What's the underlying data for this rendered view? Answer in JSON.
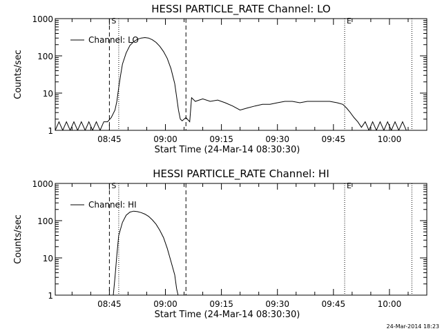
{
  "chart_data": [
    {
      "type": "line",
      "title": "HESSI PARTICLE_RATE Channel: LO",
      "xlabel": "Start Time (24-Mar-14 08:30:30)",
      "ylabel": "Counts/sec",
      "yscale": "log",
      "ylim": [
        1,
        1000
      ],
      "xlim": [
        "08:30:30",
        "10:10:00"
      ],
      "xticks": [
        "08:45",
        "09:00",
        "09:15",
        "09:30",
        "09:45",
        "10:00"
      ],
      "yticks": [
        "1",
        "10",
        "100",
        "1000"
      ],
      "legend": {
        "placement": "top-left"
      },
      "series": [
        {
          "name": "Channel: LO",
          "points": [
            [
              "08:30:30",
              1
            ],
            [
              "08:31:30",
              1.7
            ],
            [
              "08:32:30",
              1
            ],
            [
              "08:33:30",
              1.7
            ],
            [
              "08:34:30",
              1
            ],
            [
              "08:35:30",
              1.7
            ],
            [
              "08:36:30",
              1
            ],
            [
              "08:37:30",
              1.7
            ],
            [
              "08:38:30",
              1
            ],
            [
              "08:39:30",
              1.7
            ],
            [
              "08:40:30",
              1
            ],
            [
              "08:41:30",
              1.7
            ],
            [
              "08:42:30",
              1
            ],
            [
              "08:43:30",
              1.7
            ],
            [
              "08:44:30",
              1.7
            ],
            [
              "08:45:30",
              2.2
            ],
            [
              "08:46:30",
              3.5
            ],
            [
              "08:47:00",
              6
            ],
            [
              "08:47:30",
              14
            ],
            [
              "08:48:00",
              30
            ],
            [
              "08:48:30",
              60
            ],
            [
              "08:49:30",
              120
            ],
            [
              "08:50:30",
              190
            ],
            [
              "08:51:30",
              240
            ],
            [
              "08:52:30",
              280
            ],
            [
              "08:53:30",
              300
            ],
            [
              "08:54:30",
              310
            ],
            [
              "08:55:30",
              300
            ],
            [
              "08:56:30",
              270
            ],
            [
              "08:57:30",
              230
            ],
            [
              "08:58:30",
              180
            ],
            [
              "08:59:30",
              130
            ],
            [
              "09:00:30",
              85
            ],
            [
              "09:01:30",
              45
            ],
            [
              "09:02:30",
              18
            ],
            [
              "09:03:00",
              8
            ],
            [
              "09:03:30",
              3.5
            ],
            [
              "09:04:00",
              2
            ],
            [
              "09:04:30",
              1.8
            ],
            [
              "09:05:30",
              2.2
            ],
            [
              "09:06:30",
              1.7
            ],
            [
              "09:07:00",
              7.5
            ],
            [
              "09:08:00",
              6
            ],
            [
              "09:10:00",
              7
            ],
            [
              "09:12:00",
              6
            ],
            [
              "09:14:00",
              6.5
            ],
            [
              "09:16:00",
              5.5
            ],
            [
              "09:18:00",
              4.5
            ],
            [
              "09:20:00",
              3.5
            ],
            [
              "09:22:00",
              4
            ],
            [
              "09:24:00",
              4.5
            ],
            [
              "09:26:00",
              5
            ],
            [
              "09:28:00",
              5
            ],
            [
              "09:30:00",
              5.5
            ],
            [
              "09:32:00",
              6
            ],
            [
              "09:34:00",
              6
            ],
            [
              "09:36:00",
              5.5
            ],
            [
              "09:38:00",
              6
            ],
            [
              "09:40:00",
              6
            ],
            [
              "09:42:00",
              6
            ],
            [
              "09:44:00",
              6
            ],
            [
              "09:46:00",
              5.5
            ],
            [
              "09:47:30",
              5
            ],
            [
              "09:48:30",
              4
            ],
            [
              "09:49:30",
              3
            ],
            [
              "09:50:30",
              2.2
            ],
            [
              "09:51:30",
              1.7
            ],
            [
              "09:52:30",
              1.2
            ],
            [
              "09:53:30",
              1.7
            ],
            [
              "09:54:30",
              1
            ],
            [
              "09:55:30",
              1.7
            ],
            [
              "09:56:30",
              1
            ],
            [
              "09:57:30",
              1.7
            ],
            [
              "09:58:30",
              1
            ],
            [
              "09:59:30",
              1.7
            ],
            [
              "10:00:30",
              1
            ],
            [
              "10:01:30",
              1.7
            ],
            [
              "10:02:30",
              1
            ],
            [
              "10:03:30",
              1.7
            ],
            [
              "10:04:30",
              1
            ]
          ]
        }
      ],
      "markers": [
        {
          "label": "S",
          "time": "08:45:00",
          "style": "dashed"
        },
        {
          "label": "",
          "time": "08:47:30",
          "style": "dotted"
        },
        {
          "label": "",
          "time": "09:05:30",
          "style": "dashed"
        },
        {
          "label": "E",
          "time": "09:48:00",
          "style": "dotted"
        },
        {
          "label": "",
          "time": "10:06:00",
          "style": "dotted"
        }
      ]
    },
    {
      "type": "line",
      "title": "HESSI PARTICLE_RATE Channel: HI",
      "xlabel": "Start Time (24-Mar-14 08:30:30)",
      "ylabel": "Counts/sec",
      "yscale": "log",
      "ylim": [
        1,
        1000
      ],
      "xlim": [
        "08:30:30",
        "10:10:00"
      ],
      "xticks": [
        "08:45",
        "09:00",
        "09:15",
        "09:30",
        "09:45",
        "10:00"
      ],
      "yticks": [
        "1",
        "10",
        "100",
        "1000"
      ],
      "legend": {
        "placement": "top-left"
      },
      "series": [
        {
          "name": "Channel: HI",
          "points": [
            [
              "08:46:00",
              0.9
            ],
            [
              "08:46:30",
              3
            ],
            [
              "08:47:00",
              12
            ],
            [
              "08:47:30",
              40
            ],
            [
              "08:48:30",
              90
            ],
            [
              "08:49:30",
              140
            ],
            [
              "08:50:30",
              170
            ],
            [
              "08:51:30",
              180
            ],
            [
              "08:52:30",
              175
            ],
            [
              "08:53:30",
              165
            ],
            [
              "08:54:30",
              150
            ],
            [
              "08:55:30",
              130
            ],
            [
              "08:56:30",
              105
            ],
            [
              "08:57:30",
              80
            ],
            [
              "08:58:30",
              55
            ],
            [
              "08:59:30",
              35
            ],
            [
              "09:00:30",
              18
            ],
            [
              "09:01:30",
              8
            ],
            [
              "09:02:30",
              3.5
            ],
            [
              "09:03:00",
              1.5
            ],
            [
              "09:03:30",
              0.9
            ]
          ]
        }
      ],
      "markers": [
        {
          "label": "S",
          "time": "08:45:00",
          "style": "dashed"
        },
        {
          "label": "",
          "time": "08:47:30",
          "style": "dotted"
        },
        {
          "label": "",
          "time": "09:05:30",
          "style": "dashed"
        },
        {
          "label": "E",
          "time": "09:48:00",
          "style": "dotted"
        },
        {
          "label": "",
          "time": "10:06:00",
          "style": "dotted"
        }
      ]
    }
  ],
  "footer": {
    "stamp": "24-Mar-2014 18:23"
  }
}
